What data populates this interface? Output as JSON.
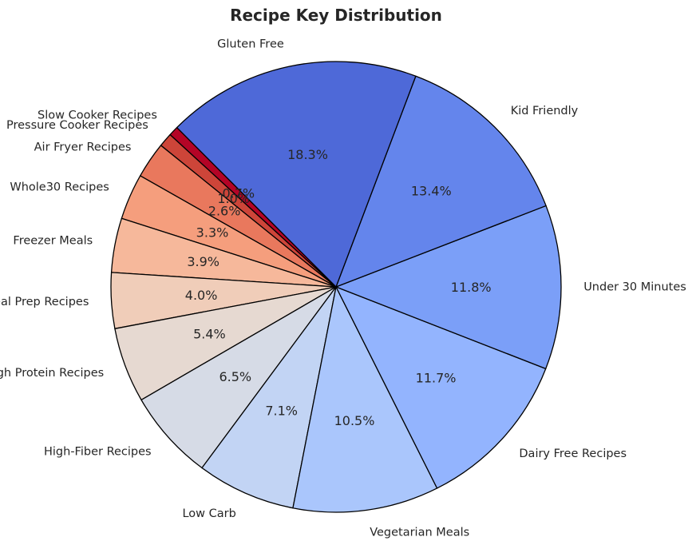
{
  "chart_data": {
    "type": "pie",
    "title": "Recipe Key Distribution",
    "start_angle_deg": 135,
    "direction": "counterclockwise",
    "edge_color": "#000000",
    "slices": [
      {
        "label": "Slow Cooker Recipes",
        "value": 0.7,
        "pct_text": "0.7%",
        "color": "#b40426"
      },
      {
        "label": "Pressure Cooker Recipes",
        "value": 1.0,
        "pct_text": "1.0%",
        "color": "#cd4539"
      },
      {
        "label": "Air Fryer Recipes",
        "value": 2.6,
        "pct_text": "2.6%",
        "color": "#e9785d"
      },
      {
        "label": "Whole30 Recipes",
        "value": 3.3,
        "pct_text": "3.3%",
        "color": "#f59e7d"
      },
      {
        "label": "Freezer Meals",
        "value": 3.9,
        "pct_text": "3.9%",
        "color": "#f6b89b"
      },
      {
        "label": "Meal Prep Recipes",
        "value": 4.0,
        "pct_text": "4.0%",
        "color": "#f0cdb9"
      },
      {
        "label": "High Protein Recipes",
        "value": 5.4,
        "pct_text": "5.4%",
        "color": "#e6d9d1"
      },
      {
        "label": "High-Fiber Recipes",
        "value": 6.5,
        "pct_text": "6.5%",
        "color": "#d6dbe6"
      },
      {
        "label": "Low Carb",
        "value": 7.1,
        "pct_text": "7.1%",
        "color": "#c2d4f4"
      },
      {
        "label": "Vegetarian Meals",
        "value": 10.5,
        "pct_text": "10.5%",
        "color": "#aac6fc"
      },
      {
        "label": "Dairy Free Recipes",
        "value": 11.7,
        "pct_text": "11.7%",
        "color": "#93b4fe"
      },
      {
        "label": "Under 30 Minutes",
        "value": 11.8,
        "pct_text": "11.8%",
        "color": "#7b9ff8"
      },
      {
        "label": "Kid Friendly",
        "value": 13.4,
        "pct_text": "13.4%",
        "color": "#6485ec"
      },
      {
        "label": "Gluten Free",
        "value": 18.3,
        "pct_text": "18.3%",
        "color": "#4e69d8"
      }
    ]
  }
}
